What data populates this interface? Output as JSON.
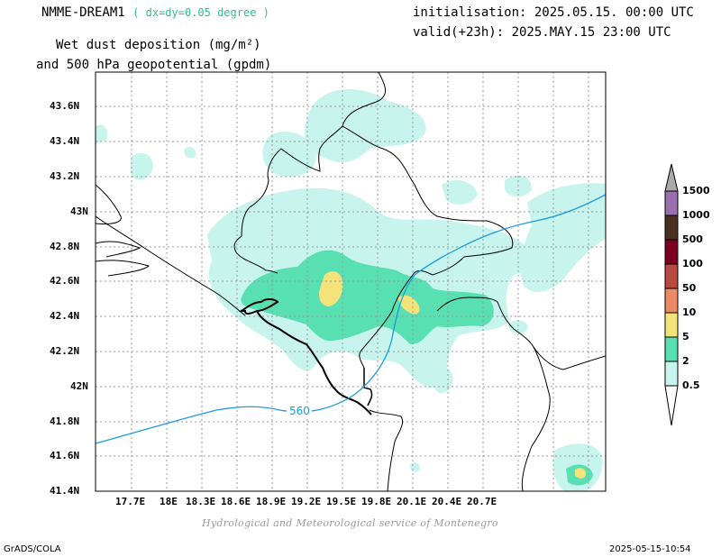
{
  "header": {
    "model": "NMME-DREAM1",
    "resolution": "( dx=dy=0.05 degree )",
    "variable_line1": "Wet dust deposition (mg/m²)",
    "variable_line2": "and 500 hPa geopotential (gpdm)",
    "init": "initialisation: 2025.05.15. 00:00 UTC",
    "valid": "valid(+23h): 2025.MAY.15 23:00 UTC"
  },
  "axes": {
    "x_ticks": [
      "17.7E",
      "18E",
      "18.3E",
      "18.6E",
      "18.9E",
      "19.2E",
      "19.5E",
      "19.8E",
      "20.1E",
      "20.4E",
      "20.7E"
    ],
    "y_ticks": [
      "43.6N",
      "43.4N",
      "43.2N",
      "43N",
      "42.8N",
      "42.6N",
      "42.4N",
      "42.2N",
      "42N",
      "41.8N",
      "41.6N",
      "41.4N"
    ]
  },
  "legend": {
    "levels": [
      {
        "label": "1500",
        "color": "#9a6fb0"
      },
      {
        "label": "1000",
        "color": "#4a3020"
      },
      {
        "label": "500",
        "color": "#7e0020"
      },
      {
        "label": "100",
        "color": "#b84a42"
      },
      {
        "label": "50",
        "color": "#ec8a66"
      },
      {
        "label": "10",
        "color": "#f4e27a"
      },
      {
        "label": "5",
        "color": "#59e0b2"
      },
      {
        "label": "2",
        "color": "#c7f4ec"
      },
      {
        "label": "0.5",
        "color": "#ffffff"
      }
    ],
    "arrow_top_color": "#a9a9a9"
  },
  "map": {
    "contour_label": "560",
    "contour_color": "#1e9be0",
    "field_colors": {
      "light": "#c7f4ec",
      "medium": "#59e0b2",
      "high": "#f4e27a"
    }
  },
  "credit": "Hydrological and Meteorological service of Montenegro",
  "footer": {
    "left": "GrADS/COLA",
    "right": "2025-05-15-10:54"
  }
}
